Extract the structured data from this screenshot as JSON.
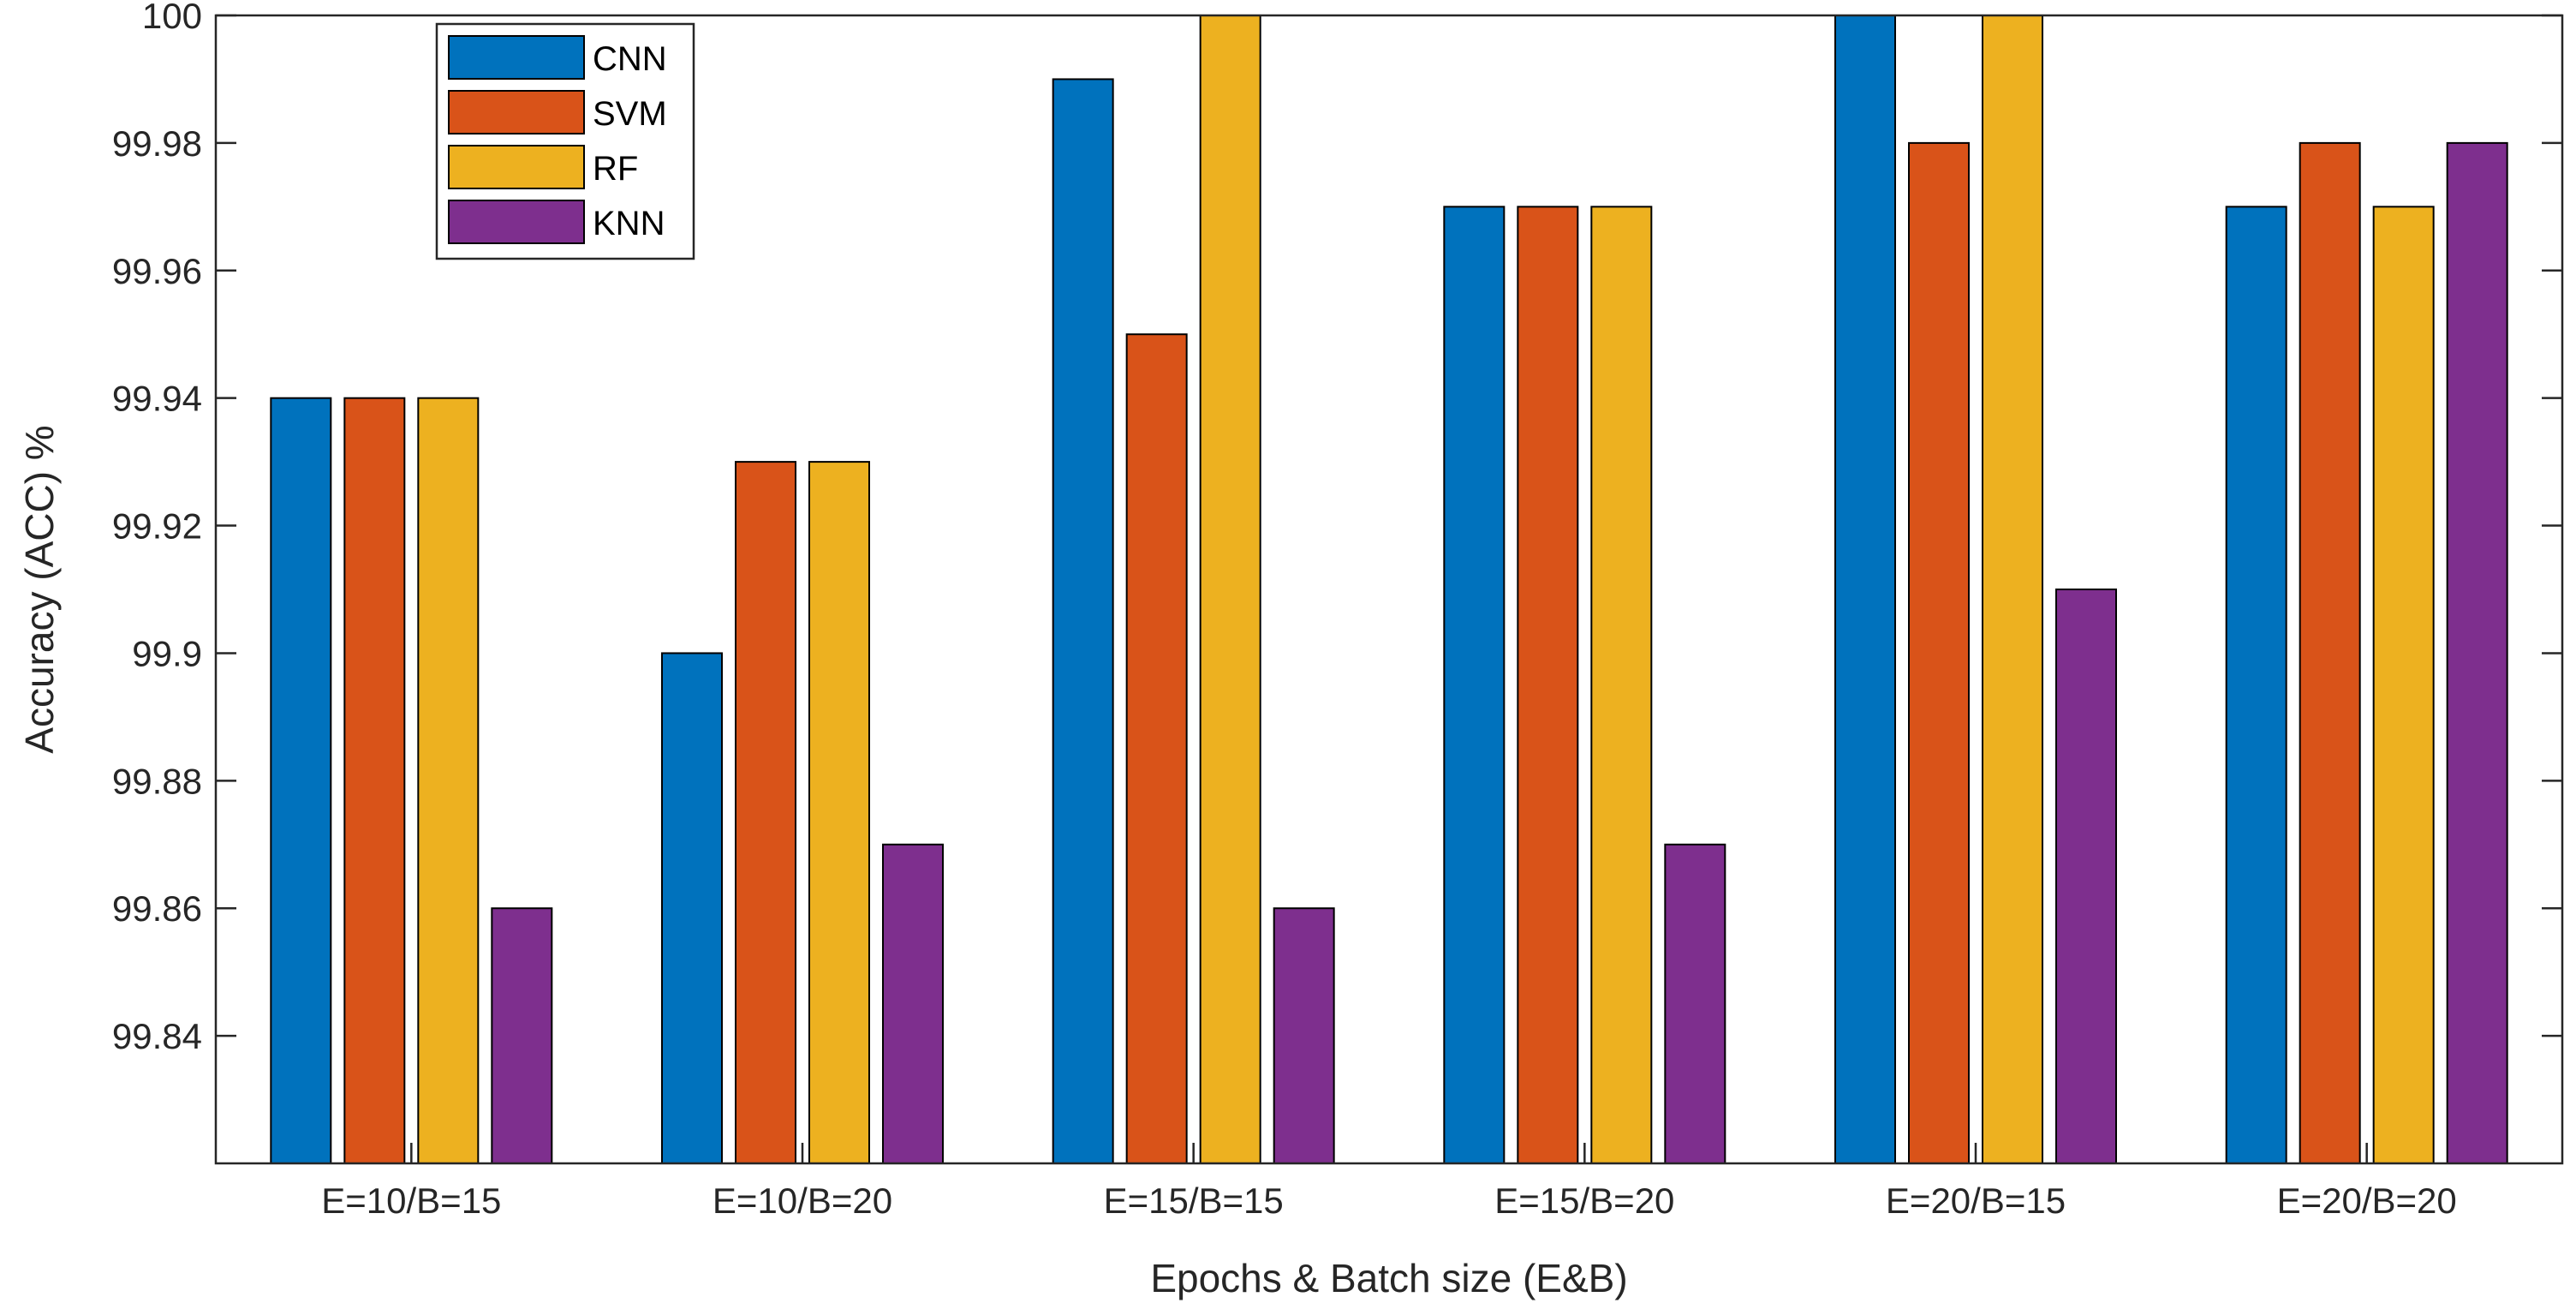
{
  "chart_data": {
    "type": "bar",
    "title": "",
    "xlabel": "Epochs & Batch size (E&B)",
    "ylabel": "Accuracy (ACC) %",
    "categories": [
      "E=10/B=15",
      "E=10/B=20",
      "E=15/B=15",
      "E=15/B=20",
      "E=20/B=15",
      "E=20/B=20"
    ],
    "ylim": [
      99.82,
      100.0
    ],
    "yticks": [
      99.84,
      99.86,
      99.88,
      99.9,
      99.92,
      99.94,
      99.96,
      99.98,
      100
    ],
    "ytick_labels": [
      "99.84",
      "99.86",
      "99.88",
      "99.9",
      "99.92",
      "99.94",
      "99.96",
      "99.98",
      "100"
    ],
    "grid": false,
    "legend_position": "top-left",
    "series": [
      {
        "name": "CNN",
        "color": "#0072BD",
        "values": [
          99.94,
          99.9,
          99.99,
          99.97,
          100.0,
          99.97
        ]
      },
      {
        "name": "SVM",
        "color": "#D95319",
        "values": [
          99.94,
          99.93,
          99.95,
          99.97,
          99.98,
          99.98
        ]
      },
      {
        "name": "RF",
        "color": "#EDB120",
        "values": [
          99.94,
          99.93,
          100.0,
          99.97,
          100.0,
          99.97
        ]
      },
      {
        "name": "KNN",
        "color": "#7E2F8E",
        "values": [
          99.86,
          99.87,
          99.86,
          99.87,
          99.91,
          99.98
        ]
      }
    ]
  }
}
